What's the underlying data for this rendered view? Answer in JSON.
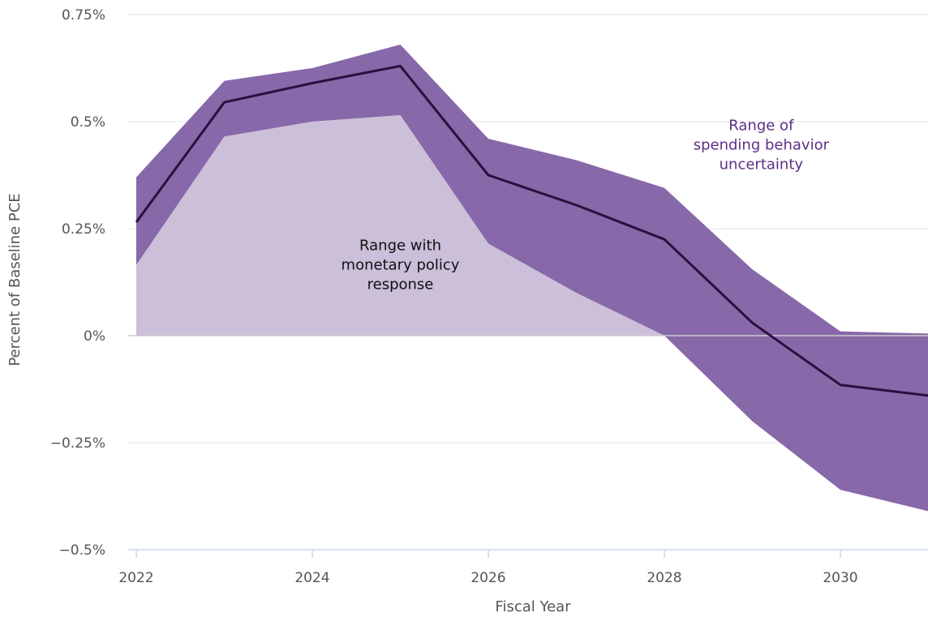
{
  "chart_data": {
    "type": "area",
    "title": "",
    "xlabel": "Fiscal Year",
    "ylabel": "Percent of Baseline PCE",
    "x": [
      2022,
      2023,
      2024,
      2025,
      2026,
      2027,
      2028,
      2029,
      2030,
      2031
    ],
    "xlim": [
      2022,
      2031
    ],
    "ylim": [
      -0.5,
      0.75
    ],
    "x_ticks": [
      2022,
      2024,
      2026,
      2028,
      2030
    ],
    "x_tick_labels": [
      "2022",
      "2024",
      "2026",
      "2028",
      "2030"
    ],
    "y_ticks": [
      -0.5,
      -0.25,
      0,
      0.25,
      0.5,
      0.75
    ],
    "y_tick_labels": [
      "−0.5%",
      "−0.25%",
      "0%",
      "0.25%",
      "0.5%",
      "0.75%"
    ],
    "grid": true,
    "series": [
      {
        "role": "outer-band",
        "upper": [
          0.37,
          0.595,
          0.625,
          0.68,
          0.46,
          0.41,
          0.345,
          0.155,
          0.01,
          0.005
        ],
        "lower": [
          0.165,
          0.465,
          0.5,
          0.515,
          0.215,
          0.1,
          0.0,
          -0.2,
          -0.36,
          -0.41
        ]
      },
      {
        "role": "inner-band",
        "upper": [
          0.165,
          0.465,
          0.5,
          0.515,
          0.215,
          0.1,
          0.0
        ],
        "lower": [
          0,
          0,
          0,
          0,
          0,
          0,
          0
        ],
        "x": [
          2022,
          2023,
          2024,
          2025,
          2026,
          2027,
          2028
        ]
      },
      {
        "role": "central-line",
        "values": [
          0.265,
          0.545,
          0.59,
          0.63,
          0.375,
          0.305,
          0.225,
          0.03,
          -0.115,
          -0.14
        ]
      }
    ],
    "annotations": [
      {
        "lines": [
          "Range with",
          "monetary policy",
          "response"
        ],
        "x": 2025.0,
        "y": 0.2
      },
      {
        "lines": [
          "Range of",
          "spending behavior",
          "uncertainty"
        ],
        "x": 2029.1,
        "y": 0.48
      }
    ],
    "colors": {
      "outer_band": "#8768a8",
      "inner_band": "#cbbfda",
      "central_line": "#2b0f3d",
      "annotation_outer": "#5d2f86",
      "annotation_inner": "#111111",
      "grid": "#e6e6e6",
      "zero_line": "#cccccc",
      "x_axis": "#ccd6eb"
    }
  }
}
